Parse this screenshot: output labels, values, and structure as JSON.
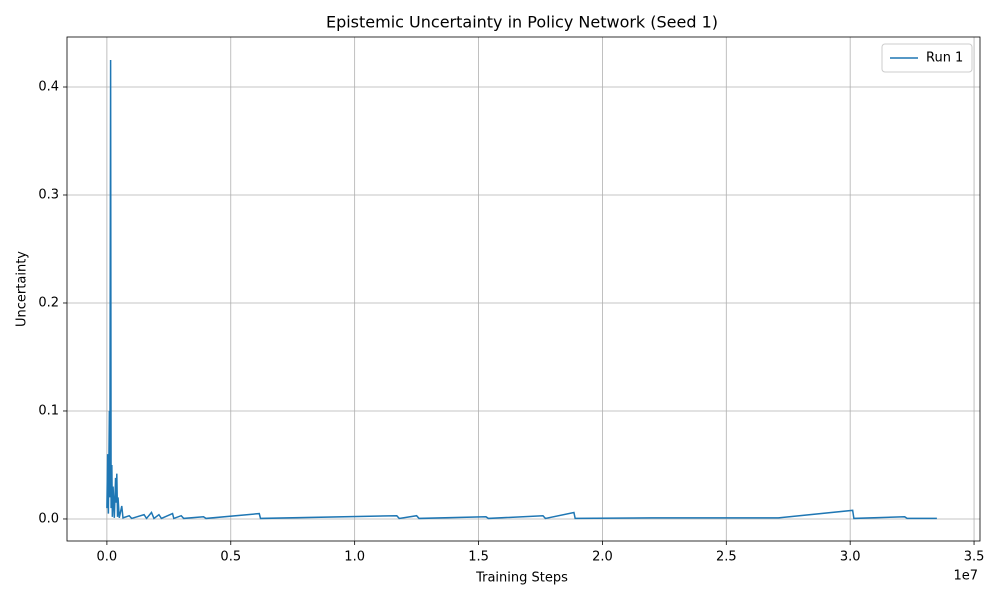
{
  "chart_data": {
    "type": "line",
    "title": "Epistemic Uncertainty in Policy Network (Seed 1)",
    "x_label": "Training Steps",
    "y_label": "Uncertainty",
    "x_offset_label": "1e7",
    "x": [
      0.0,
      0.003,
      0.006,
      0.01,
      0.012,
      0.015,
      0.017,
      0.02,
      0.022,
      0.025,
      0.03,
      0.035,
      0.038,
      0.04,
      0.043,
      0.045,
      0.05,
      0.06,
      0.065,
      0.09,
      0.1,
      0.15,
      0.16,
      0.18,
      0.19,
      0.21,
      0.22,
      0.265,
      0.27,
      0.3,
      0.31,
      0.39,
      0.4,
      0.615,
      0.62,
      1.17,
      1.18,
      1.25,
      1.26,
      1.53,
      1.54,
      1.76,
      1.77,
      1.885,
      1.89,
      2.2,
      2.71,
      3.01,
      3.015,
      3.22,
      3.23,
      3.35
    ],
    "series": [
      {
        "name": "Run 1",
        "color": "#1f77b4",
        "values": [
          0.01,
          0.06,
          0.005,
          0.1,
          0.02,
          0.425,
          0.01,
          0.05,
          0.002,
          0.03,
          0.001,
          0.038,
          0.015,
          0.042,
          0.002,
          0.02,
          0.001,
          0.012,
          0.001,
          0.003,
          0.0005,
          0.004,
          0.0005,
          0.006,
          0.0005,
          0.004,
          0.0005,
          0.005,
          0.0005,
          0.003,
          0.0005,
          0.002,
          0.0005,
          0.005,
          0.0005,
          0.003,
          0.0005,
          0.003,
          0.0005,
          0.002,
          0.0005,
          0.003,
          0.0005,
          0.006,
          0.0005,
          0.001,
          0.001,
          0.008,
          0.0005,
          0.002,
          0.0005,
          0.0005
        ]
      }
    ],
    "xlim": [
      -0.161,
      3.524
    ],
    "ylim": [
      -0.0204,
      0.4463
    ],
    "xticks": [
      {
        "value": 0,
        "label": "0.0"
      },
      0.5,
      {
        "value": 1,
        "label": "1.0"
      },
      1.5,
      {
        "value": 2,
        "label": "2.0"
      },
      2.5,
      {
        "value": 3,
        "label": "3.0"
      },
      3.5
    ],
    "yticks": [
      {
        "value": 0,
        "label": "0.0"
      },
      0.1,
      0.2,
      0.3,
      0.4
    ],
    "grid": true,
    "legend": "upper right"
  }
}
